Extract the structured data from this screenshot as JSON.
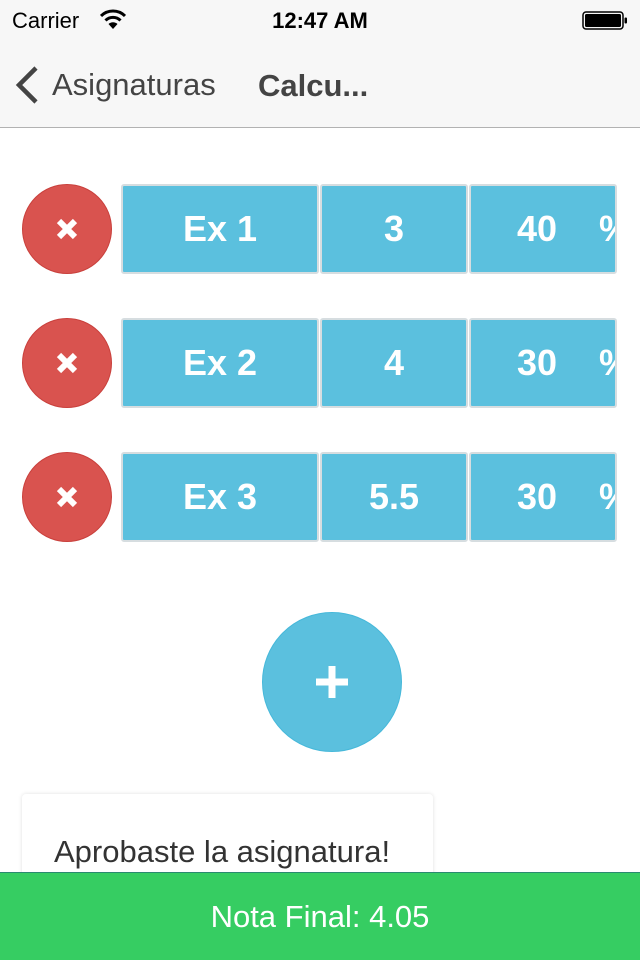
{
  "status_bar": {
    "carrier": "Carrier",
    "time": "12:47 AM",
    "wifi_icon": "wifi-icon",
    "battery_icon": "battery-full-icon"
  },
  "nav": {
    "back_label": "Asignaturas",
    "title": "Calcu..."
  },
  "exams": [
    {
      "name": "Ex 1",
      "grade": "3",
      "weight": "40",
      "unit": "%"
    },
    {
      "name": "Ex 2",
      "grade": "4",
      "weight": "30",
      "unit": "%"
    },
    {
      "name": "Ex 3",
      "grade": "5.5",
      "weight": "30",
      "unit": "%"
    }
  ],
  "result_message": "Aprobaste la asignatura!",
  "footer": {
    "final_label": "Nota Final: 4.05"
  },
  "colors": {
    "delete": "#d9534f",
    "cell": "#5bc0de",
    "add": "#5bc0de",
    "footer": "#36cd62"
  }
}
